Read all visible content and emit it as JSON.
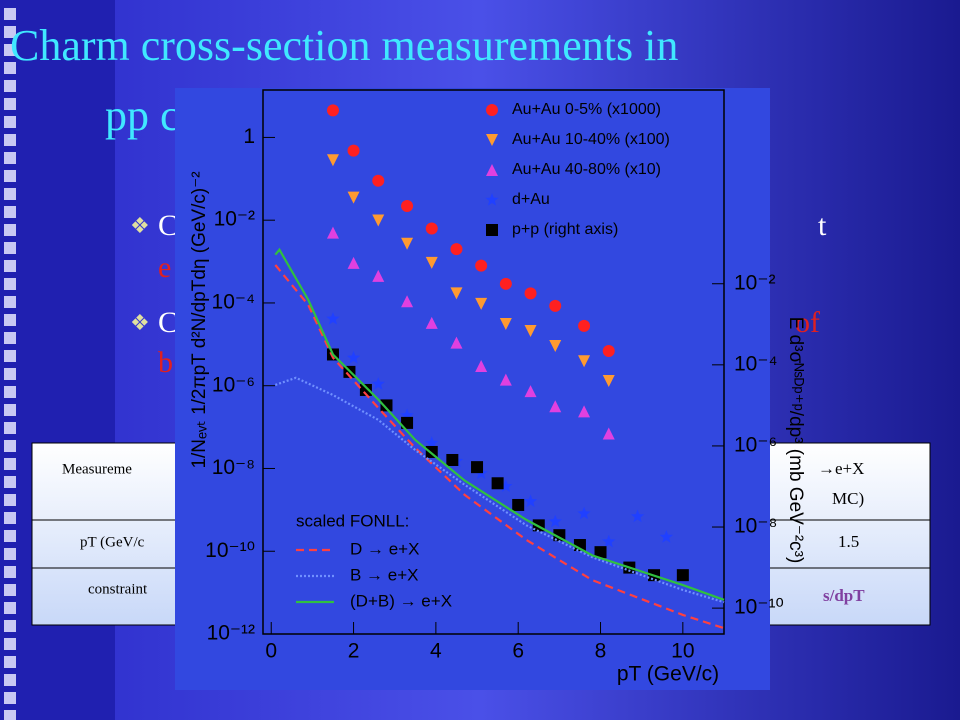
{
  "slide": {
    "title_lines": [
      "Charm cross-section measurements in",
      "pp c"
    ],
    "bullet_fragments": [
      {
        "start": "C",
        "end": "t"
      },
      {
        "start": "e"
      },
      {
        "start": "C",
        "end": "of"
      },
      {
        "start": "b"
      }
    ],
    "table_left": [
      "Measureme",
      "pT (GeV/c",
      "constraint"
    ],
    "table_right": [
      "→e+X",
      "MC)",
      "1.5",
      "s/dpT"
    ]
  },
  "chart_data": {
    "type": "scatter",
    "yscale": "log",
    "y2scale": "log",
    "xlabel": "pT (GeV/c)",
    "ylabel": "1/Nₑᵥₜ 1/2πpT d²N/dpTdη (GeV/c)⁻²",
    "y2label": "E d³σᴺˢᴰᵖ⁺ᵖ/dp³ (mb GeV⁻²c³)",
    "legend_title_2": "scaled FONLL:",
    "xlim": [
      -0.2,
      11
    ],
    "xticks": [
      0,
      2,
      4,
      6,
      8,
      10
    ],
    "ylim": [
      1e-12,
      14
    ],
    "yticks": [
      1,
      {
        "value": 0.01,
        "label": "10⁻²"
      },
      {
        "value": 0.0001,
        "label": "10⁻⁴"
      },
      {
        "value": 1e-06,
        "label": "10⁻⁶"
      },
      {
        "value": 1e-08,
        "label": "10⁻⁸"
      },
      {
        "value": 1e-10,
        "label": "10⁻¹⁰"
      },
      {
        "value": 1e-12,
        "label": "10⁻¹²"
      }
    ],
    "y2lim": [
      2.3e-11,
      600
    ],
    "y2ticks": [
      {
        "value": 0.01,
        "label": "10⁻²"
      },
      {
        "value": 0.0001,
        "label": "10⁻⁴"
      },
      {
        "value": 1e-06,
        "label": "10⁻⁶"
      },
      {
        "value": 1e-08,
        "label": "10⁻⁸"
      },
      {
        "value": 1e-10,
        "label": "10⁻¹⁰"
      }
    ],
    "series": [
      {
        "name": "Au+Au 0-5% (x1000)",
        "marker": "circle",
        "color": "#ff2020",
        "x": [
          1.5,
          2.0,
          2.6,
          3.3,
          3.9,
          4.5,
          5.1,
          5.7,
          6.3,
          6.9,
          7.6,
          8.2
        ],
        "values": [
          4.5,
          0.48,
          0.09,
          0.022,
          0.0063,
          0.002,
          0.0008,
          0.00029,
          0.00017,
          8.5e-05,
          2.8e-05,
          6.9e-06
        ]
      },
      {
        "name": "Au+Au 10-40% (x100)",
        "marker": "triangle-down",
        "color": "#ff9a30",
        "x": [
          1.5,
          2.0,
          2.6,
          3.3,
          3.9,
          4.5,
          5.1,
          5.7,
          6.3,
          6.9,
          7.6,
          8.2
        ],
        "values": [
          0.28,
          0.035,
          0.0098,
          0.0027,
          0.00093,
          0.00017,
          9.5e-05,
          3.1e-05,
          2.1e-05,
          9.1e-06,
          3.9e-06,
          1.3e-06
        ]
      },
      {
        "name": "Au+Au 40-80% (x10)",
        "marker": "triangle-up",
        "color": "#e040e0",
        "x": [
          1.5,
          2.0,
          2.6,
          3.3,
          3.9,
          4.5,
          5.1,
          5.7,
          6.3,
          6.9,
          7.6,
          8.2
        ],
        "values": [
          0.005,
          0.00093,
          0.00045,
          0.00011,
          3.3e-05,
          1.1e-05,
          3e-06,
          1.4e-06,
          7.4e-07,
          3.2e-07,
          2.4e-07,
          7e-08
        ]
      },
      {
        "name": "d+Au",
        "marker": "star",
        "color": "#2040ff",
        "x": [
          1.5,
          2.0,
          2.6,
          3.3,
          3.9,
          4.5,
          5.1,
          5.7,
          6.3,
          6.9,
          7.6,
          8.2,
          8.9,
          9.6
        ],
        "values": [
          4.1e-05,
          4.7e-06,
          1.1e-06,
          1.9e-07,
          4.1e-08,
          1.5e-08,
          7.6e-09,
          3.7e-09,
          1.6e-09,
          5.2e-10,
          8.1e-10,
          1.7e-10,
          6.9e-10,
          2.2e-10
        ]
      },
      {
        "name": "p+p (right axis)",
        "marker": "square",
        "color": "#000000",
        "axis": "y2",
        "x": [
          1.5,
          1.9,
          2.3,
          2.8,
          3.3,
          3.9,
          4.4,
          5.0,
          5.5,
          6.0,
          6.5,
          7.0,
          7.5,
          8.0,
          8.7,
          9.3,
          10.0
        ],
        "values": [
          0.00018,
          6.7e-05,
          2.4e-05,
          1e-05,
          3.7e-06,
          7.1e-07,
          4.5e-07,
          3e-07,
          1.2e-07,
          3.5e-08,
          1.1e-08,
          6.3e-09,
          3.6e-09,
          2.4e-09,
          1e-09,
          6.5e-10,
          6.5e-10
        ]
      },
      {
        "name": "D → e+X",
        "line": "dashed",
        "color": "#ff4040",
        "axis": "y2",
        "x": [
          0.1,
          0.9,
          1.5,
          2.6,
          3.5,
          4.7,
          6.2,
          7.8,
          10,
          11
        ],
        "values": [
          0.029,
          0.003,
          0.00015,
          8.7e-06,
          8.9e-07,
          6.2e-08,
          4.8e-09,
          4.9e-10,
          6.8e-11,
          3.2e-11
        ]
      },
      {
        "name": "B → e+X",
        "line": "dotted",
        "color": "#7090ff",
        "axis": "y2",
        "x": [
          0.1,
          0.6,
          1.5,
          2.6,
          3.5,
          4.7,
          6.2,
          7.8,
          10,
          11
        ],
        "values": [
          3.2e-05,
          4.8e-05,
          1.8e-05,
          4.4e-06,
          7.9e-07,
          1.1e-07,
          1.1e-08,
          1.8e-09,
          2.8e-10,
          1.4e-10
        ]
      },
      {
        "name": "(D+B) → e+X",
        "line": "solid",
        "color": "#30c040",
        "axis": "y2",
        "x": [
          0.1,
          0.2,
          0.9,
          1.5,
          2.6,
          3.5,
          4.7,
          6.2,
          7.8,
          10,
          11
        ],
        "values": [
          0.052,
          0.069,
          0.004,
          0.00018,
          1.4e-05,
          1.4e-06,
          1.4e-07,
          1.5e-08,
          2e-09,
          3.7e-10,
          1.6e-10
        ]
      }
    ]
  }
}
